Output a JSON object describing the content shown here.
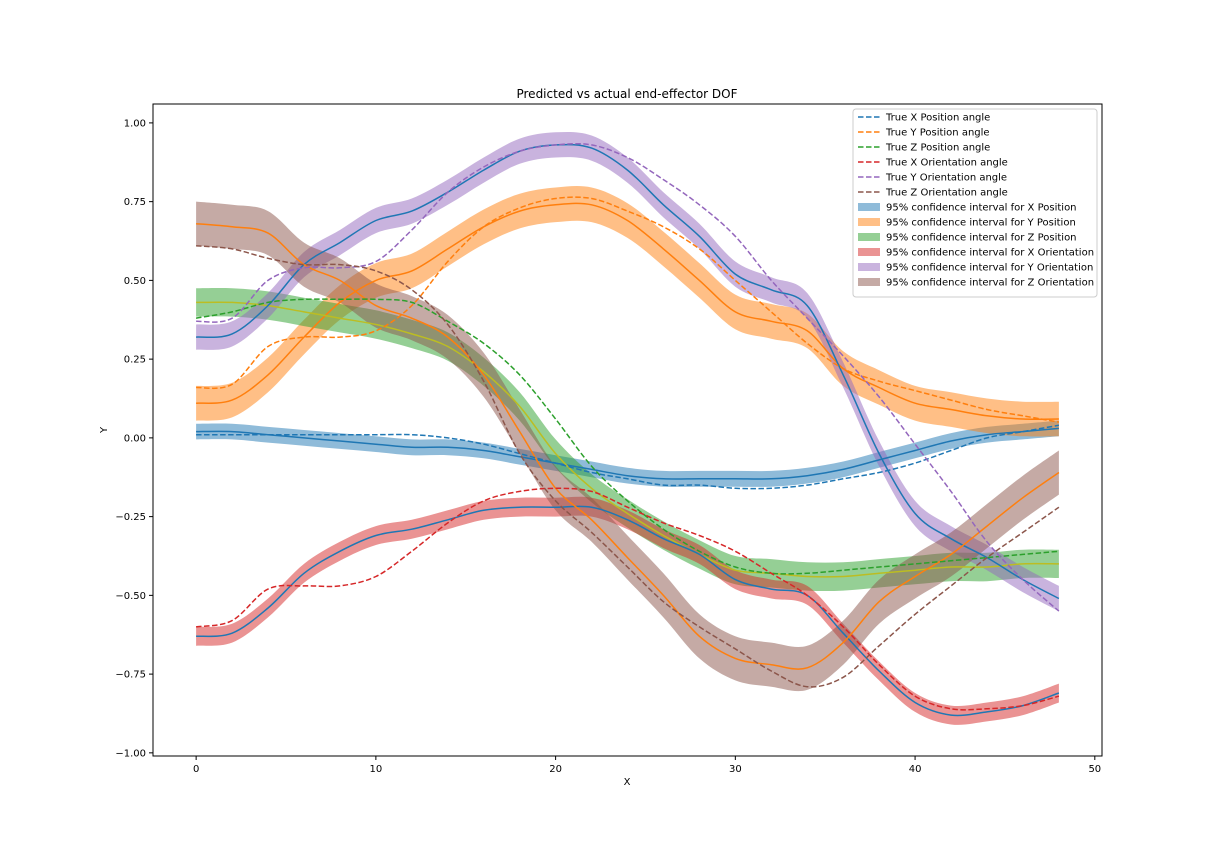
{
  "chart_data": {
    "type": "line",
    "title": "Predicted vs actual end-effector DOF",
    "xlabel": "X",
    "ylabel": "Y",
    "xlim": [
      -2.4,
      50.4
    ],
    "ylim": [
      -1.01,
      1.06
    ],
    "xticks": [
      0,
      10,
      20,
      30,
      40,
      50
    ],
    "yticks": [
      -1.0,
      -0.75,
      -0.5,
      -0.25,
      0.0,
      0.25,
      0.5,
      0.75,
      1.0
    ],
    "xtick_labels": [
      "0",
      "10",
      "20",
      "30",
      "40",
      "50"
    ],
    "ytick_labels": [
      "−1.00",
      "−0.75",
      "−0.50",
      "−0.25",
      "0.00",
      "0.25",
      "0.50",
      "0.75",
      "1.00"
    ],
    "grid": false,
    "legend_position": "top-right",
    "x": [
      0,
      2,
      4,
      6,
      8,
      10,
      12,
      14,
      16,
      18,
      20,
      22,
      24,
      26,
      28,
      30,
      32,
      34,
      36,
      38,
      40,
      42,
      44,
      46,
      48
    ],
    "true_series": [
      {
        "name": "True X Position angle",
        "color": "#1f77b4",
        "values": [
          0.01,
          0.01,
          0.01,
          0.01,
          0.01,
          0.01,
          0.01,
          0.0,
          -0.02,
          -0.05,
          -0.08,
          -0.11,
          -0.13,
          -0.15,
          -0.15,
          -0.16,
          -0.16,
          -0.15,
          -0.13,
          -0.11,
          -0.08,
          -0.04,
          0.0,
          0.02,
          0.04
        ]
      },
      {
        "name": "True Y Position angle",
        "color": "#ff7f0e",
        "values": [
          0.16,
          0.17,
          0.29,
          0.32,
          0.32,
          0.34,
          0.42,
          0.56,
          0.67,
          0.73,
          0.76,
          0.76,
          0.72,
          0.67,
          0.6,
          0.5,
          0.4,
          0.3,
          0.22,
          0.18,
          0.15,
          0.12,
          0.09,
          0.07,
          0.05
        ]
      },
      {
        "name": "True Z Position angle",
        "color": "#2ca02c",
        "values": [
          0.38,
          0.4,
          0.43,
          0.44,
          0.44,
          0.44,
          0.43,
          0.37,
          0.3,
          0.2,
          0.06,
          -0.09,
          -0.2,
          -0.29,
          -0.36,
          -0.41,
          -0.43,
          -0.43,
          -0.42,
          -0.41,
          -0.4,
          -0.39,
          -0.38,
          -0.37,
          -0.36
        ]
      },
      {
        "name": "True X Orientation angle",
        "color": "#d62728",
        "values": [
          -0.6,
          -0.58,
          -0.48,
          -0.47,
          -0.47,
          -0.44,
          -0.36,
          -0.27,
          -0.2,
          -0.17,
          -0.16,
          -0.17,
          -0.22,
          -0.27,
          -0.31,
          -0.36,
          -0.43,
          -0.5,
          -0.6,
          -0.72,
          -0.82,
          -0.86,
          -0.86,
          -0.85,
          -0.82
        ]
      },
      {
        "name": "True Y Orientation angle",
        "color": "#9467bd",
        "values": [
          0.37,
          0.38,
          0.5,
          0.54,
          0.54,
          0.56,
          0.66,
          0.78,
          0.86,
          0.91,
          0.93,
          0.93,
          0.89,
          0.82,
          0.74,
          0.64,
          0.5,
          0.38,
          0.26,
          0.13,
          -0.02,
          -0.17,
          -0.33,
          -0.45,
          -0.55
        ]
      },
      {
        "name": "True Z Orientation angle",
        "color": "#8c564b",
        "values": [
          0.61,
          0.6,
          0.57,
          0.55,
          0.55,
          0.53,
          0.47,
          0.36,
          0.18,
          -0.05,
          -0.2,
          -0.3,
          -0.41,
          -0.52,
          -0.6,
          -0.67,
          -0.74,
          -0.79,
          -0.76,
          -0.66,
          -0.56,
          -0.47,
          -0.38,
          -0.3,
          -0.22
        ]
      }
    ],
    "predicted_series": [
      {
        "color": "#1f77b4",
        "band_color": "#1f77b4",
        "band_label": "95% confidence interval for X Position",
        "half_width": 0.025,
        "values": [
          0.02,
          0.02,
          0.01,
          0.0,
          -0.01,
          -0.02,
          -0.03,
          -0.03,
          -0.04,
          -0.06,
          -0.08,
          -0.1,
          -0.12,
          -0.13,
          -0.13,
          -0.13,
          -0.13,
          -0.12,
          -0.1,
          -0.07,
          -0.04,
          -0.01,
          0.01,
          0.02,
          0.03
        ]
      },
      {
        "color": "#ff7f0e",
        "band_color": "#ff7f0e",
        "band_label": "95% confidence interval for Y Position",
        "half_width": 0.055,
        "values": [
          0.11,
          0.12,
          0.2,
          0.32,
          0.43,
          0.5,
          0.53,
          0.6,
          0.67,
          0.72,
          0.74,
          0.74,
          0.69,
          0.6,
          0.5,
          0.4,
          0.37,
          0.34,
          0.22,
          0.16,
          0.11,
          0.09,
          0.07,
          0.06,
          0.06
        ]
      },
      {
        "color": "#bcbd22",
        "band_color": "#2ca02c",
        "band_label": "95% confidence interval for Z Position",
        "half_width": 0.045,
        "values": [
          0.43,
          0.43,
          0.42,
          0.4,
          0.38,
          0.36,
          0.33,
          0.29,
          0.21,
          0.1,
          -0.05,
          -0.16,
          -0.24,
          -0.31,
          -0.37,
          -0.42,
          -0.43,
          -0.44,
          -0.44,
          -0.43,
          -0.42,
          -0.41,
          -0.41,
          -0.4,
          -0.4
        ]
      },
      {
        "color": "#1f77b4",
        "band_color": "#d62728",
        "band_label": "95% confidence interval for X Orientation",
        "half_width": 0.03,
        "values": [
          -0.63,
          -0.62,
          -0.54,
          -0.43,
          -0.36,
          -0.31,
          -0.29,
          -0.26,
          -0.23,
          -0.22,
          -0.22,
          -0.22,
          -0.26,
          -0.32,
          -0.37,
          -0.45,
          -0.48,
          -0.5,
          -0.62,
          -0.74,
          -0.84,
          -0.88,
          -0.87,
          -0.85,
          -0.81
        ]
      },
      {
        "color": "#1f77b4",
        "band_color": "#9467bd",
        "band_label": "95% confidence interval for Y Orientation",
        "half_width": 0.04,
        "values": [
          0.32,
          0.33,
          0.42,
          0.55,
          0.62,
          0.69,
          0.72,
          0.78,
          0.85,
          0.91,
          0.93,
          0.92,
          0.85,
          0.74,
          0.64,
          0.52,
          0.47,
          0.42,
          0.2,
          -0.05,
          -0.24,
          -0.32,
          -0.38,
          -0.45,
          -0.51
        ]
      },
      {
        "color": "#ff7f0e",
        "band_color": "#8c564b",
        "band_label": "95% confidence interval for Z Orientation",
        "half_width": 0.07,
        "values": [
          0.68,
          0.67,
          0.65,
          0.55,
          0.5,
          0.42,
          0.38,
          0.32,
          0.2,
          0.02,
          -0.16,
          -0.26,
          -0.38,
          -0.5,
          -0.63,
          -0.7,
          -0.72,
          -0.73,
          -0.65,
          -0.52,
          -0.44,
          -0.37,
          -0.28,
          -0.19,
          -0.11
        ]
      }
    ]
  }
}
